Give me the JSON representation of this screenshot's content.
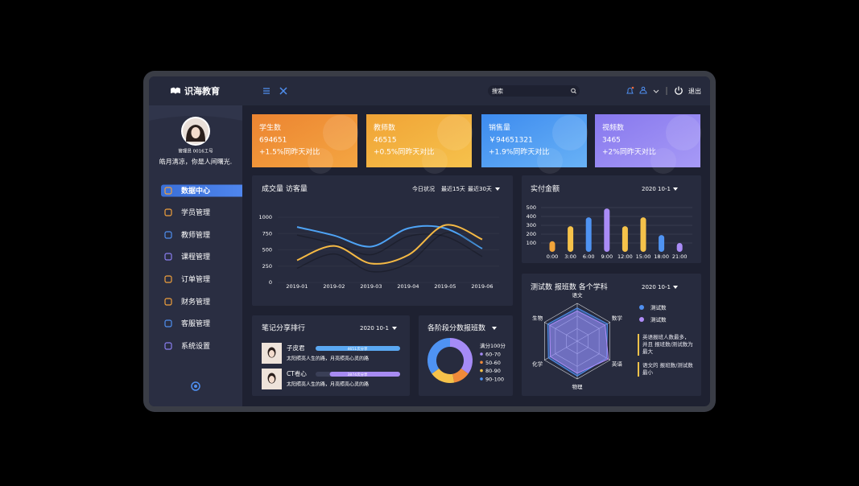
{
  "brand": "识海教育",
  "header": {
    "search_placeholder": "搜索",
    "logout": "退出"
  },
  "profile": {
    "role": "管理员 0016工号",
    "motto": "皓月清凉，你是人间曙光."
  },
  "menu": {
    "items": [
      "数据中心",
      "学员管理",
      "教师管理",
      "课程管理",
      "订单管理",
      "财务管理",
      "客服管理",
      "系统设置"
    ],
    "active": 0
  },
  "stats": [
    {
      "label": "学生数",
      "value": "694651",
      "change": "+1.5%同昨天对比",
      "colors": [
        "#ec8431",
        "#f4a642"
      ]
    },
    {
      "label": "教师数",
      "value": "46515",
      "change": "+0.5%同昨天对比",
      "colors": [
        "#f0a336",
        "#f6c24c"
      ]
    },
    {
      "label": "销售量",
      "value": "￥94651321",
      "change": "+1.9%同昨天对比",
      "colors": [
        "#3d8bef",
        "#69b2f6"
      ]
    },
    {
      "label": "视频数",
      "value": "3465",
      "change": "+2%同昨天对比",
      "colors": [
        "#8778ee",
        "#a79af6"
      ]
    }
  ],
  "ranking": {
    "title": "笔记分享排行",
    "filter": "2020 10-1",
    "items": [
      {
        "name": "子皮君",
        "text": "太阳照亮人生的路，月亮照亮心灵的路",
        "value": 4651,
        "value_label": "4651次分享",
        "color": "#5aa8f2"
      },
      {
        "name": "CT卷心",
        "text": "太阳照亮人生的路，月亮照亮心灵的路",
        "value": 3874,
        "value_label": "3874次分享",
        "color": "#a78bf2"
      }
    ]
  },
  "chart_data": [
    {
      "type": "line",
      "title": "成交量 访客量",
      "filters": [
        "今日状况",
        "最近15天",
        "最近30天"
      ],
      "categories": [
        "2019-01",
        "2019-02",
        "2019-03",
        "2019-04",
        "2019-05",
        "2019-06"
      ],
      "series": [
        {
          "color": "#4ea3f5",
          "values": [
            850,
            720,
            550,
            830,
            830,
            520
          ]
        },
        {
          "color": "#f5b944",
          "values": [
            340,
            560,
            290,
            420,
            880,
            660
          ]
        }
      ],
      "ylim": [
        0,
        1000
      ],
      "yticks": [
        0,
        250,
        500,
        750,
        1000
      ],
      "grid": true
    },
    {
      "type": "bar",
      "title": "实付金额",
      "filter": "2020 10-1",
      "categories": [
        "0:00",
        "3:00",
        "6:00",
        "9:00",
        "12:00",
        "15:00",
        "18:00",
        "21:00"
      ],
      "values": [
        120,
        290,
        390,
        490,
        290,
        390,
        190,
        100
      ],
      "colors": [
        "#f2a43a",
        "#f5c24a",
        "#4f93f2",
        "#a98bf6",
        "#f5c24a",
        "#f5c24a",
        "#4f93f2",
        "#a98bf6"
      ],
      "ylim": [
        0,
        500
      ],
      "yticks": [
        100,
        200,
        300,
        400,
        500
      ],
      "grid": true
    },
    {
      "type": "radar",
      "title": "测试数 报班数 各个学科",
      "filter": "2020 10-1",
      "categories": [
        "语文",
        "数学",
        "英语",
        "物理",
        "化学",
        "生物"
      ],
      "rlim": [
        0,
        100
      ],
      "series": [
        {
          "name": "测试数",
          "color": "#4f8ff0",
          "values": [
            88,
            92,
            90,
            92,
            88,
            90
          ]
        },
        {
          "name": "测试数",
          "color": "#b08cf8",
          "values": [
            80,
            85,
            95,
            85,
            82,
            84
          ]
        }
      ],
      "notes": [
        "英语报班人数最多，并且 报班数/测试数为最大",
        "语文的 报班数/测试数最小"
      ]
    },
    {
      "type": "donut",
      "title": "各阶段分数报班数",
      "legend_title": "满分100分",
      "categories": [
        "60-70",
        "50-60",
        "80-90",
        "90-100"
      ],
      "values": [
        35,
        12,
        18,
        35
      ],
      "colors": [
        "#a58bf6",
        "#f08a3a",
        "#f5c24a",
        "#4f93f2"
      ]
    }
  ]
}
